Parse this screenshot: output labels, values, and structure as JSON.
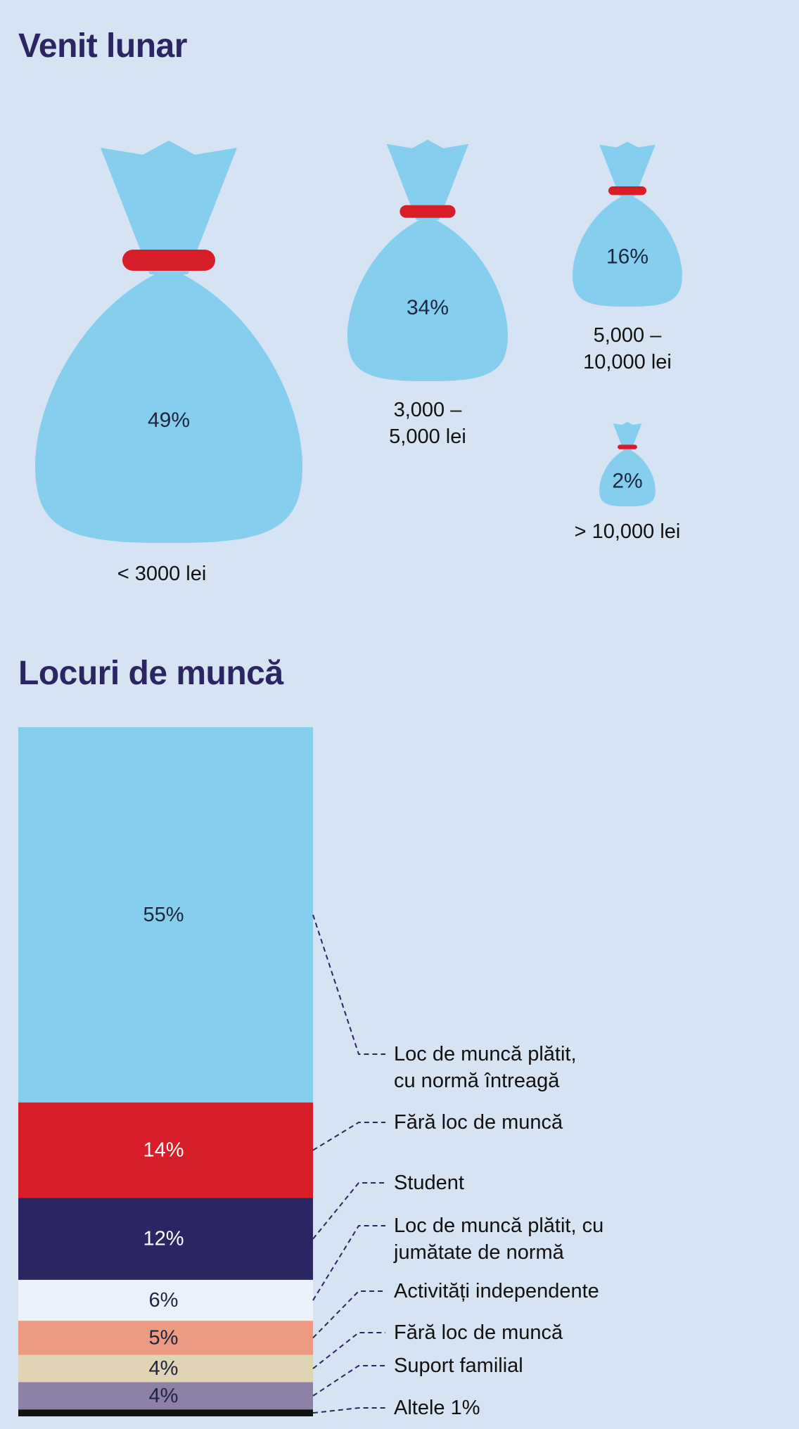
{
  "titles": {
    "income": "Venit lunar",
    "jobs": "Locuri de muncă"
  },
  "colors": {
    "background": "#d6e3f2",
    "bag": "#86ceee",
    "tie": "#d71e28",
    "title": "#2b2563"
  },
  "chart_data": [
    {
      "type": "pictogram",
      "title": "Venit lunar",
      "categories": [
        "< 3000 lei",
        "3,000 – 5,000 lei",
        "5,000 – 10,000 lei",
        "> 10,000 lei"
      ],
      "values": [
        49,
        34,
        16,
        2
      ],
      "labels": [
        "49%",
        "34%",
        "16%",
        "2%"
      ],
      "label_lines": [
        [
          "< 3000 lei"
        ],
        [
          "3,000 –",
          "5,000 lei"
        ],
        [
          "5,000 –",
          "10,000 lei"
        ],
        [
          "> 10,000 lei"
        ]
      ]
    },
    {
      "type": "bar",
      "stacked": true,
      "title": "Locuri de muncă",
      "categories": [
        "Loc de muncă plătit, cu normă întreagă",
        "Fără loc de muncă",
        "Student",
        "Loc de muncă plătit, cu jumătate de normă",
        "Activități independente",
        "Fără loc de muncă",
        "Suport familial",
        "Altele 1%"
      ],
      "legend_lines": [
        [
          "Loc de muncă plătit,",
          "cu normă întreagă"
        ],
        [
          "Fără loc de muncă"
        ],
        [
          "Student"
        ],
        [
          "Loc de muncă plătit, cu",
          "jumătate de normă"
        ],
        [
          "Activități independente"
        ],
        [
          "Fără loc de muncă"
        ],
        [
          "Suport familial"
        ],
        [
          "Altele 1%"
        ]
      ],
      "values": [
        55,
        14,
        12,
        6,
        5,
        4,
        4,
        1
      ],
      "labels": [
        "55%",
        "14%",
        "12%",
        "6%",
        "5%",
        "4%",
        "4%",
        ""
      ],
      "colors": [
        "#86ceee",
        "#d71e28",
        "#2b2563",
        "#eaf1fa",
        "#ec9a82",
        "#e1d4b4",
        "#8d80a9",
        "#111111"
      ],
      "label_colors": [
        "#1d2540",
        "#ffffff",
        "#ffffff",
        "#1d2540",
        "#1d2540",
        "#1d2540",
        "#1d2540",
        "#ffffff"
      ]
    }
  ]
}
